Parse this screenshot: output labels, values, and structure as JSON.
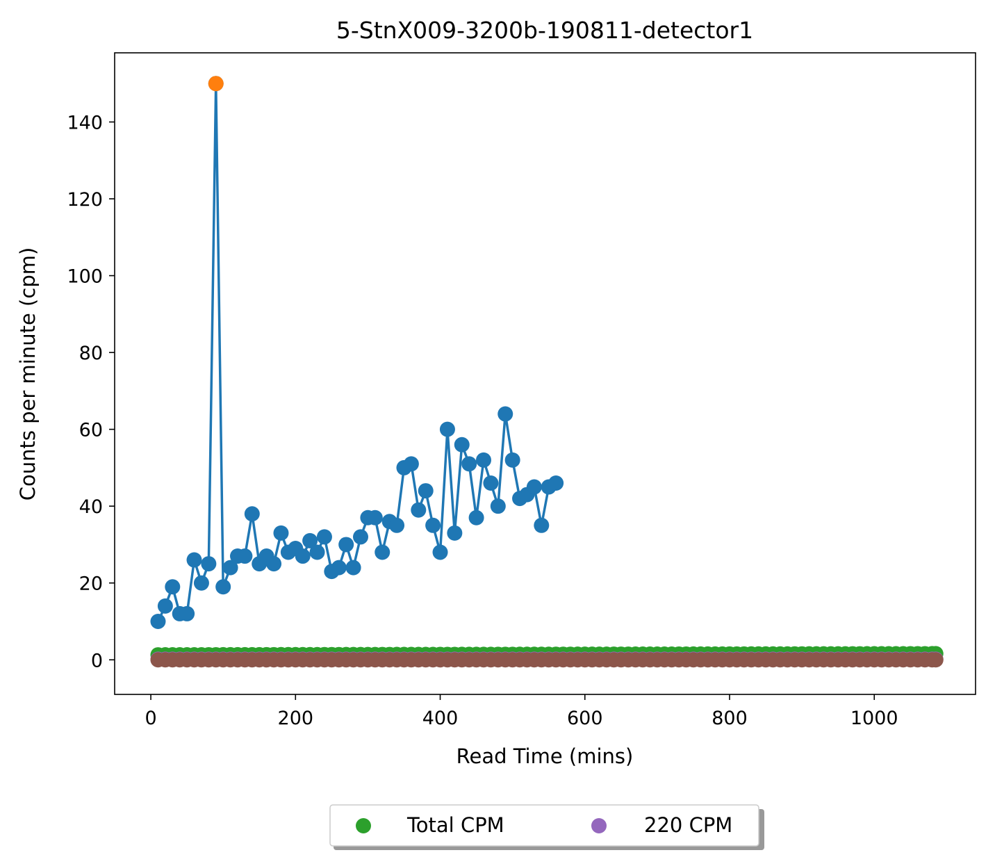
{
  "chart_data": {
    "type": "line",
    "title": "5-StnX009-3200b-190811-detector1",
    "xlabel": "Read Time (mins)",
    "ylabel": "Counts per minute (cpm)",
    "xlim": [
      -50,
      1140
    ],
    "ylim": [
      -9,
      158
    ],
    "xticks": [
      0,
      200,
      400,
      600,
      800,
      1000
    ],
    "yticks": [
      0,
      20,
      40,
      60,
      80,
      100,
      120,
      140
    ],
    "grid": false,
    "legend_position": "bottom-center",
    "colors": {
      "blue": "#1f77b4",
      "orange": "#ff7f0e",
      "green": "#2ca02c",
      "red": "#d62728",
      "purple": "#9467bd",
      "brown": "#8c564b"
    },
    "series": [
      {
        "color": "#1f77b4",
        "style": "line+markers",
        "x": [
          10,
          20,
          30,
          40,
          50,
          60,
          70,
          80,
          90,
          100,
          110,
          120,
          130,
          140,
          150,
          160,
          170,
          180,
          190,
          200,
          210,
          220,
          230,
          240,
          250,
          260,
          270,
          280,
          290,
          300,
          310,
          320,
          330,
          340,
          350,
          360,
          370,
          380,
          390,
          400,
          410,
          420,
          430,
          440,
          450,
          460,
          470,
          480,
          490,
          500,
          510,
          520,
          530,
          540,
          550,
          560
        ],
        "y": [
          10,
          14,
          19,
          12,
          12,
          26,
          20,
          25,
          150,
          19,
          24,
          27,
          27,
          38,
          25,
          27,
          25,
          33,
          28,
          29,
          27,
          31,
          28,
          32,
          23,
          24,
          30,
          24,
          32,
          37,
          37,
          28,
          36,
          35,
          50,
          51,
          39,
          44,
          35,
          28,
          60,
          33,
          56,
          51,
          37,
          52,
          46,
          40,
          64,
          52,
          42,
          43,
          45,
          35,
          45,
          46
        ]
      },
      {
        "color": "#ff7f0e",
        "style": "markers",
        "x": [
          90
        ],
        "y": [
          150
        ]
      },
      {
        "name": "Total CPM",
        "color": "#2ca02c",
        "style": "markers",
        "x_start": 10,
        "x_end": 1085,
        "x_step": 10,
        "y_start": 1.3,
        "y_end": 1.6
      },
      {
        "color": "#ff7f0e",
        "style": "line",
        "x_start": 10,
        "x_end": 1085,
        "y_start": 1.2,
        "y_end": 1.4
      },
      {
        "color": "#d62728",
        "style": "line",
        "x_start": 10,
        "x_end": 1085,
        "y_start": 0.9,
        "y_end": 0.5
      },
      {
        "name": "220 CPM",
        "color": "#9467bd",
        "style": "markers",
        "x_start": 10,
        "x_end": 1085,
        "x_step": 10,
        "y_start": 0.15,
        "y_end": 0.15
      },
      {
        "color": "#8c564b",
        "style": "markers",
        "x_start": 10,
        "x_end": 1085,
        "x_step": 10,
        "y_start": 0.0,
        "y_end": 0.0
      }
    ],
    "legend": [
      {
        "label": "Total CPM",
        "color": "#2ca02c"
      },
      {
        "label": "220 CPM",
        "color": "#9467bd"
      }
    ]
  }
}
